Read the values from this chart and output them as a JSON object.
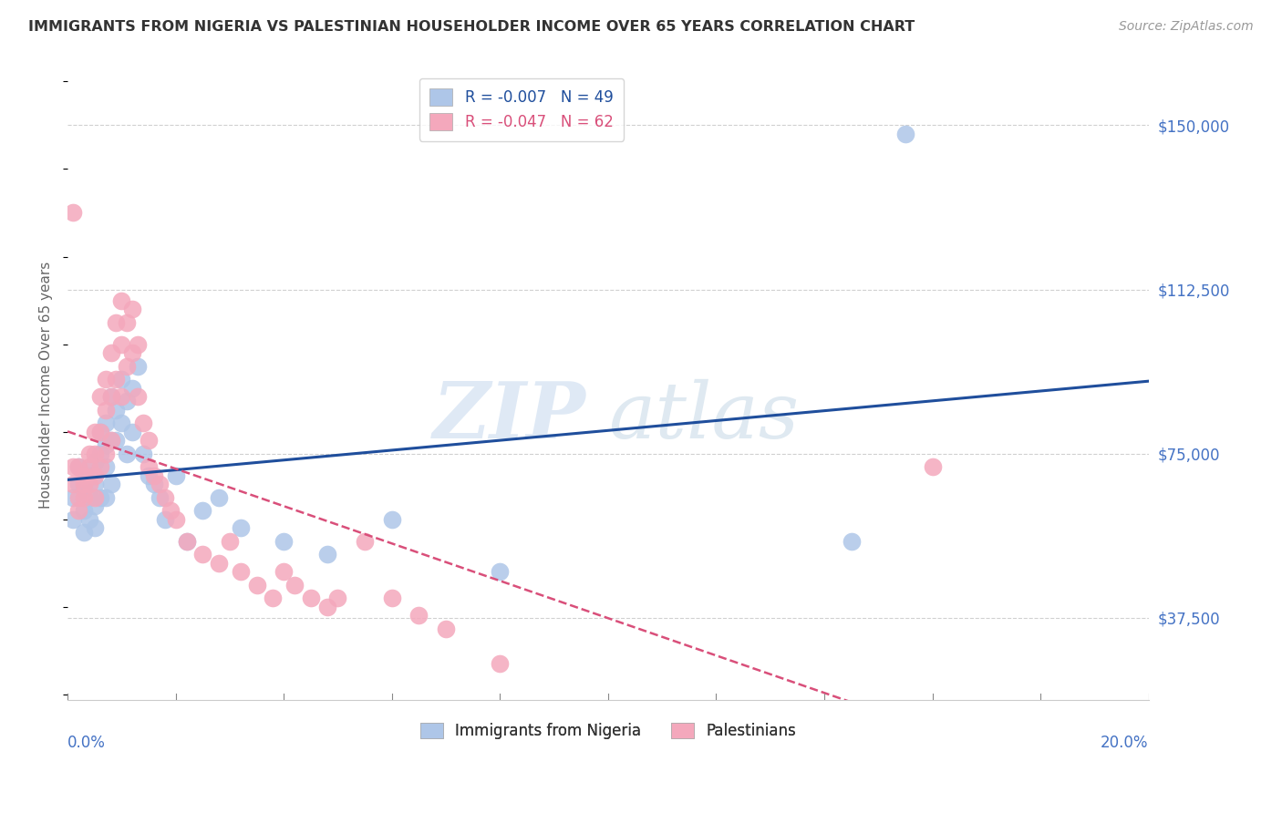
{
  "title": "IMMIGRANTS FROM NIGERIA VS PALESTINIAN HOUSEHOLDER INCOME OVER 65 YEARS CORRELATION CHART",
  "source": "Source: ZipAtlas.com",
  "ylabel": "Householder Income Over 65 years",
  "ytick_labels": [
    "$37,500",
    "$75,000",
    "$112,500",
    "$150,000"
  ],
  "ytick_values": [
    37500,
    75000,
    112500,
    150000
  ],
  "xlim": [
    0.0,
    0.2
  ],
  "ylim": [
    18750,
    162500
  ],
  "watermark_zip": "ZIP",
  "watermark_atlas": "atlas",
  "legend_blue_label": "Immigrants from Nigeria",
  "legend_pink_label": "Palestinians",
  "legend_blue_R": "R = -0.007",
  "legend_blue_N": "N = 49",
  "legend_pink_R": "R = -0.047",
  "legend_pink_N": "N = 62",
  "blue_color": "#aec6e8",
  "pink_color": "#f4a8bc",
  "blue_line_color": "#1f4e9c",
  "pink_line_color": "#d94f7a",
  "axis_label_color": "#4472c4",
  "grid_color": "#d0d0d0",
  "blue_scatter_x": [
    0.001,
    0.001,
    0.002,
    0.002,
    0.003,
    0.003,
    0.003,
    0.004,
    0.004,
    0.004,
    0.005,
    0.005,
    0.005,
    0.005,
    0.006,
    0.006,
    0.006,
    0.007,
    0.007,
    0.007,
    0.007,
    0.008,
    0.008,
    0.008,
    0.009,
    0.009,
    0.01,
    0.01,
    0.011,
    0.011,
    0.012,
    0.012,
    0.013,
    0.014,
    0.015,
    0.016,
    0.017,
    0.018,
    0.02,
    0.022,
    0.025,
    0.028,
    0.032,
    0.04,
    0.048,
    0.06,
    0.08,
    0.145,
    0.155
  ],
  "blue_scatter_y": [
    65000,
    60000,
    68000,
    72000,
    67000,
    62000,
    57000,
    70000,
    65000,
    60000,
    73000,
    68000,
    63000,
    58000,
    80000,
    75000,
    65000,
    82000,
    77000,
    72000,
    65000,
    88000,
    78000,
    68000,
    85000,
    78000,
    92000,
    82000,
    87000,
    75000,
    90000,
    80000,
    95000,
    75000,
    70000,
    68000,
    65000,
    60000,
    70000,
    55000,
    62000,
    65000,
    58000,
    55000,
    52000,
    60000,
    48000,
    55000,
    148000
  ],
  "pink_scatter_x": [
    0.001,
    0.001,
    0.001,
    0.002,
    0.002,
    0.002,
    0.003,
    0.003,
    0.003,
    0.004,
    0.004,
    0.004,
    0.005,
    0.005,
    0.005,
    0.005,
    0.006,
    0.006,
    0.006,
    0.007,
    0.007,
    0.007,
    0.008,
    0.008,
    0.008,
    0.009,
    0.009,
    0.01,
    0.01,
    0.01,
    0.011,
    0.011,
    0.012,
    0.012,
    0.013,
    0.013,
    0.014,
    0.015,
    0.015,
    0.016,
    0.017,
    0.018,
    0.019,
    0.02,
    0.022,
    0.025,
    0.028,
    0.03,
    0.032,
    0.035,
    0.038,
    0.04,
    0.042,
    0.045,
    0.048,
    0.05,
    0.055,
    0.06,
    0.065,
    0.07,
    0.08,
    0.16
  ],
  "pink_scatter_y": [
    68000,
    72000,
    130000,
    65000,
    72000,
    62000,
    70000,
    68000,
    65000,
    75000,
    72000,
    68000,
    80000,
    75000,
    70000,
    65000,
    88000,
    80000,
    72000,
    92000,
    85000,
    75000,
    98000,
    88000,
    78000,
    105000,
    92000,
    110000,
    100000,
    88000,
    105000,
    95000,
    108000,
    98000,
    100000,
    88000,
    82000,
    78000,
    72000,
    70000,
    68000,
    65000,
    62000,
    60000,
    55000,
    52000,
    50000,
    55000,
    48000,
    45000,
    42000,
    48000,
    45000,
    42000,
    40000,
    42000,
    55000,
    42000,
    38000,
    35000,
    27000,
    72000
  ]
}
